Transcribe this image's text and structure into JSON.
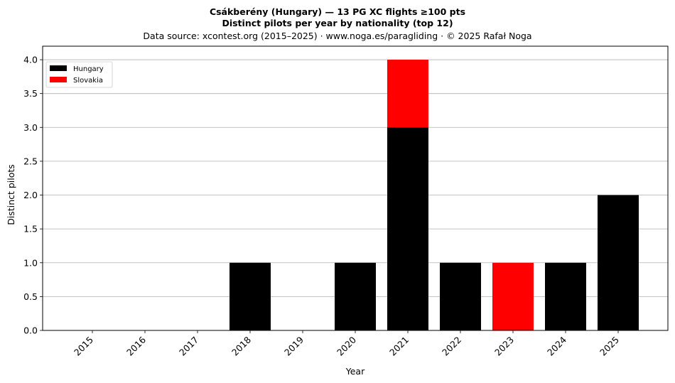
{
  "chart_data": {
    "type": "bar",
    "stacked": true,
    "title_line1": "Csákberény (Hungary)  —  13 PG XC flights ≥100 pts",
    "title_line2": "Distinct pilots per year by nationality (top 12)",
    "subtitle": "Data source: xcontest.org (2015–2025)  ·  www.noga.es/paragliding  ·  © 2025 Rafał Noga",
    "xlabel": "Year",
    "ylabel": "Distinct pilots",
    "ylim": [
      0,
      4.2
    ],
    "yticks": [
      "0.0",
      "0.5",
      "1.0",
      "1.5",
      "2.0",
      "2.5",
      "3.0",
      "3.5",
      "4.0"
    ],
    "ytick_values": [
      0,
      0.5,
      1,
      1.5,
      2,
      2.5,
      3,
      3.5,
      4
    ],
    "grid": "horizontal",
    "legend_position": "top-left",
    "categories": [
      "2015",
      "2016",
      "2017",
      "2018",
      "2019",
      "2020",
      "2021",
      "2022",
      "2023",
      "2024",
      "2025"
    ],
    "series": [
      {
        "name": "Hungary",
        "color": "#000000",
        "values": [
          0,
          0,
          0,
          1,
          0,
          1,
          3,
          1,
          0,
          1,
          2
        ]
      },
      {
        "name": "Slovakia",
        "color": "#ff0000",
        "values": [
          0,
          0,
          0,
          0,
          0,
          0,
          1,
          0,
          1,
          0,
          0
        ]
      }
    ]
  }
}
